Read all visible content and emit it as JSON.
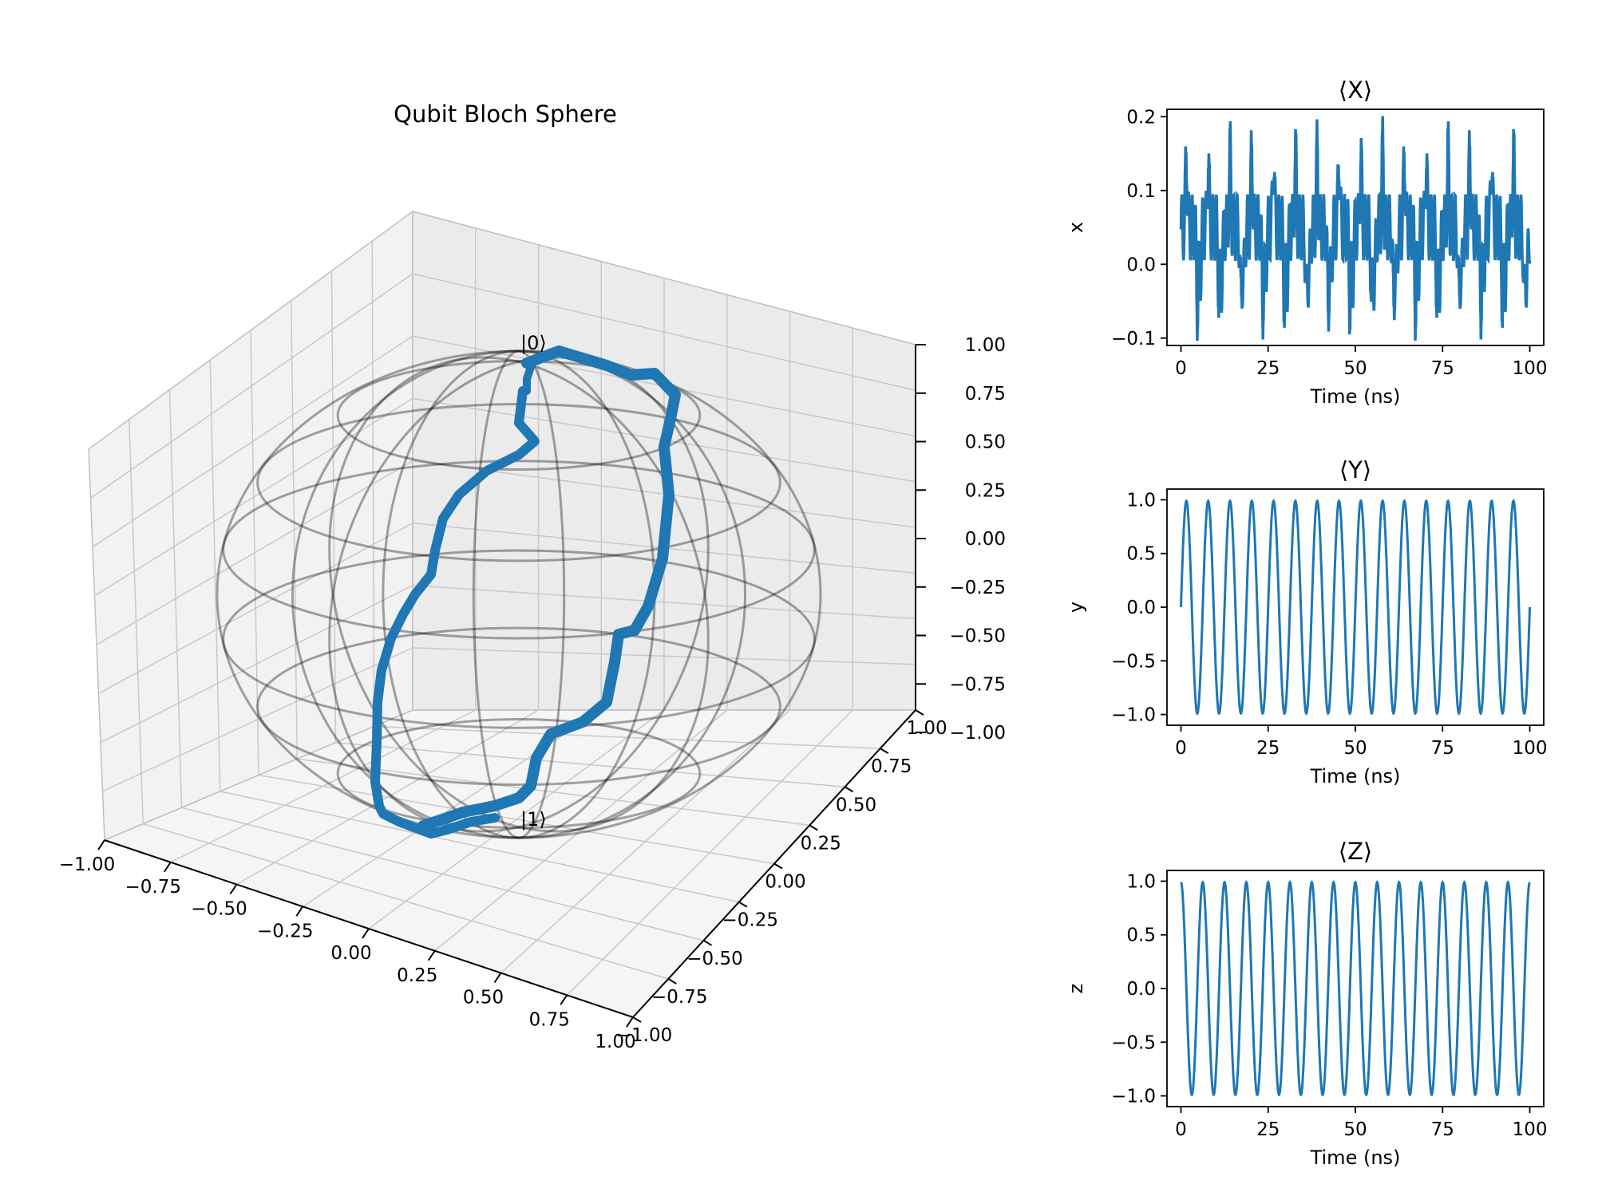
{
  "chart_data": [
    {
      "type": "line3d",
      "title": "Qubit Bloch Sphere",
      "xlim": [
        -1.0,
        1.0
      ],
      "ylim": [
        -1.0,
        1.0
      ],
      "zlim": [
        -1.0,
        1.0
      ],
      "x_ticks": [
        "−1.00",
        "−0.75",
        "−0.50",
        "−0.25",
        "0.00",
        "0.25",
        "0.50",
        "0.75",
        "1.00"
      ],
      "y_ticks": [
        "−1.00",
        "−0.75",
        "−0.50",
        "−0.25",
        "0.00",
        "0.25",
        "0.50",
        "0.75",
        "1.00"
      ],
      "z_ticks": [
        "−1.00",
        "−0.75",
        "−0.50",
        "−0.25",
        "0.00",
        "0.25",
        "0.50",
        "0.75",
        "1.00"
      ],
      "state_labels": {
        "top": "|0⟩",
        "bottom": "|1⟩"
      },
      "sphere_wireframe": true,
      "grid": true,
      "series_color": "#1f77b4",
      "wire_color": "#000000"
    },
    {
      "type": "line",
      "title": "⟨X⟩",
      "xlabel": "Time (ns)",
      "ylabel": "x",
      "xlim": [
        -4,
        104
      ],
      "ylim": [
        -0.11,
        0.21
      ],
      "x_ticks": [
        "0",
        "25",
        "50",
        "75",
        "100"
      ],
      "y_ticks": [
        "−0.1",
        "0.0",
        "0.1",
        "0.2"
      ],
      "periods": 16,
      "t_range": [
        0,
        100
      ],
      "amplitude_range": [
        -0.09,
        0.19
      ],
      "color": "#1f77b4"
    },
    {
      "type": "line",
      "title": "⟨Y⟩",
      "xlabel": "Time (ns)",
      "ylabel": "y",
      "xlim": [
        -4,
        104
      ],
      "ylim": [
        -1.1,
        1.1
      ],
      "x_ticks": [
        "0",
        "25",
        "50",
        "75",
        "100"
      ],
      "y_ticks": [
        "−1.0",
        "−0.5",
        "0.0",
        "0.5",
        "1.0"
      ],
      "periods": 16,
      "t_range": [
        0,
        100
      ],
      "amplitude_range": [
        -1.0,
        1.0
      ],
      "color": "#1f77b4"
    },
    {
      "type": "line",
      "title": "⟨Z⟩",
      "xlabel": "Time (ns)",
      "ylabel": "z",
      "xlim": [
        -4,
        104
      ],
      "ylim": [
        -1.1,
        1.1
      ],
      "x_ticks": [
        "0",
        "25",
        "50",
        "75",
        "100"
      ],
      "y_ticks": [
        "−1.0",
        "−0.5",
        "0.0",
        "0.5",
        "1.0"
      ],
      "periods": 16,
      "t_range": [
        0,
        100
      ],
      "amplitude_range": [
        -1.0,
        1.0
      ],
      "color": "#1f77b4"
    }
  ]
}
